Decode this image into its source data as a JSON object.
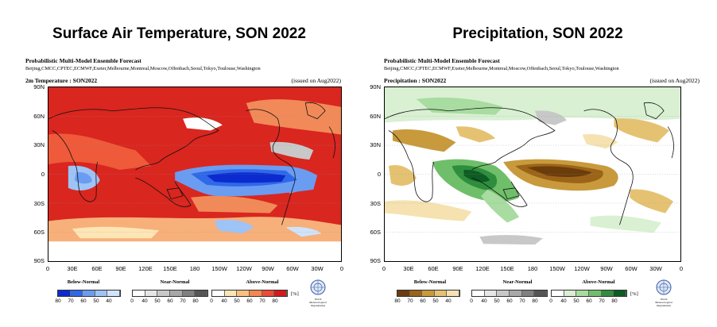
{
  "panels": [
    {
      "id": "temperature",
      "big_title": "Surface Air Temperature, SON 2022",
      "forecast_title": "Probabilistic Multi-Model Ensemble Forecast",
      "centers": "Beijing,CMCC,CPTEC,ECMWF,Exeter,Melbourne,Montreal,Moscow,Offenbach,Seoul,Tokyo,Toulouse,Washington",
      "variable_label": "2m Temperature : SON2022",
      "issued": "(issued on Aug2022)",
      "categories": [
        "Below-Normal",
        "Near-Normal",
        "Above-Normal"
      ],
      "ticks_below": [
        "80",
        "70",
        "60",
        "50",
        "40"
      ],
      "ticks_near": [
        "0",
        "40",
        "50",
        "60",
        "70",
        "80"
      ],
      "ticks_above": [
        "0",
        "40",
        "50",
        "60",
        "70",
        "80"
      ],
      "unit": "[%]",
      "colors_below": [
        "#0b2bcf",
        "#2f68e8",
        "#6a9cf2",
        "#9ec3f7",
        "#cfe3fb"
      ],
      "colors_near": [
        "#ffffff",
        "#e6e6e6",
        "#c8c8c8",
        "#a8a8a8",
        "#808080",
        "#555555"
      ],
      "colors_above": [
        "#ffffff",
        "#fde5b5",
        "#fbc07e",
        "#f7874c",
        "#ee4a35",
        "#d41b1b"
      ]
    },
    {
      "id": "precipitation",
      "big_title": "Precipitation, SON 2022",
      "forecast_title": "Probabilistic Multi-Model Ensemble Forecast",
      "centers": "Beijing,CMCC,CPTEC,ECMWF,Exeter,Melbourne,Montreal,Moscow,Offenbach,Seoul,Tokyo,Toulouse,Washington",
      "variable_label": "Precipitation : SON2022",
      "issued": "(issued on Aug2022)",
      "categories": [
        "Below-Normal",
        "Near-Normal",
        "Above-Normal"
      ],
      "ticks_below": [
        "80",
        "70",
        "60",
        "50",
        "40"
      ],
      "ticks_near": [
        "0",
        "40",
        "50",
        "60",
        "70",
        "80"
      ],
      "ticks_above": [
        "0",
        "40",
        "50",
        "60",
        "70",
        "80"
      ],
      "unit": "[%]",
      "colors_below": [
        "#6b3d0b",
        "#9c6418",
        "#c89a3c",
        "#e5c272",
        "#f5e2b0"
      ],
      "colors_near": [
        "#ffffff",
        "#e6e6e6",
        "#c8c8c8",
        "#a8a8a8",
        "#808080",
        "#555555"
      ],
      "colors_above": [
        "#ffffff",
        "#d9f0d3",
        "#a8dca0",
        "#6fbf6a",
        "#2f8e3d",
        "#0d5c23"
      ]
    }
  ],
  "lat_labels": [
    "90N",
    "60N",
    "30N",
    "0",
    "30S",
    "60S",
    "90S"
  ],
  "lon_labels": [
    "0",
    "30E",
    "60E",
    "90E",
    "120E",
    "150E",
    "180",
    "150W",
    "120W",
    "90W",
    "60W",
    "30W",
    "0"
  ],
  "logo_text": "World Meteorological Organization"
}
